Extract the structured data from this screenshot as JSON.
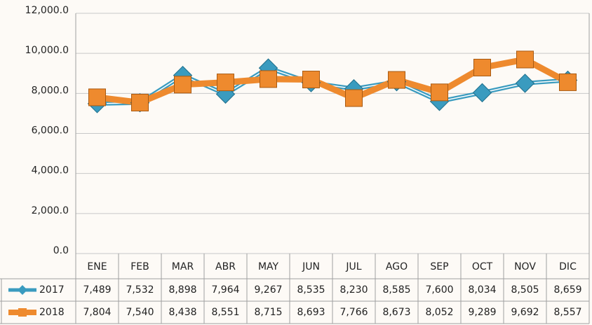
{
  "chart_data": {
    "type": "line",
    "categories": [
      "ENE",
      "FEB",
      "MAR",
      "ABR",
      "MAY",
      "JUN",
      "JUL",
      "AGO",
      "SEP",
      "OCT",
      "NOV",
      "DIC"
    ],
    "series": [
      {
        "name": "2017",
        "color": "#3a9bbf",
        "marker": "diamond",
        "values": [
          7489,
          7532,
          8898,
          7964,
          9267,
          8535,
          8230,
          8585,
          7600,
          8034,
          8505,
          8659
        ],
        "value_labels": [
          "7,489",
          "7,532",
          "8,898",
          "7,964",
          "9,267",
          "8,535",
          "8,230",
          "8,585",
          "7,600",
          "8,034",
          "8,505",
          "8,659"
        ]
      },
      {
        "name": "2018",
        "color": "#ee8a2e",
        "marker": "square",
        "values": [
          7804,
          7540,
          8438,
          8551,
          8715,
          8693,
          7766,
          8673,
          8052,
          9289,
          9692,
          8557
        ],
        "value_labels": [
          "7,804",
          "7,540",
          "8,438",
          "8,551",
          "8,715",
          "8,693",
          "7,766",
          "8,673",
          "8,052",
          "9,289",
          "9,692",
          "8,557"
        ]
      }
    ],
    "ylim": [
      0,
      12000
    ],
    "yticks": [
      {
        "value": 0,
        "label": "0.0"
      },
      {
        "value": 2000,
        "label": "2,000.0"
      },
      {
        "value": 4000,
        "label": "4,000.0"
      },
      {
        "value": 6000,
        "label": "6,000.0"
      },
      {
        "value": 8000,
        "label": "8,000.0"
      },
      {
        "value": 10000,
        "label": "10,000.0"
      },
      {
        "value": 12000,
        "label": "12,000.0"
      }
    ],
    "grid": true
  }
}
